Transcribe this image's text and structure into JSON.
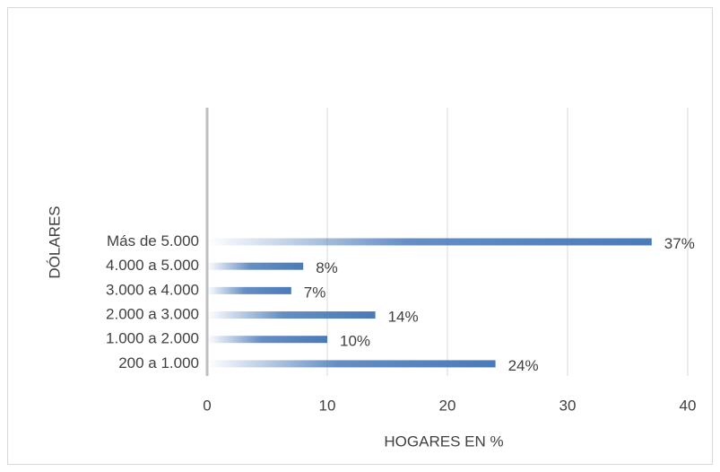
{
  "chart_data": {
    "type": "bar",
    "orientation": "horizontal",
    "categories": [
      "Más de 5.000",
      "4.000 a 5.000",
      "3.000 a 4.000",
      "2.000 a 3.000",
      "1.000 a 2.000",
      "200 a 1.000"
    ],
    "values": [
      37,
      8,
      7,
      14,
      10,
      24
    ],
    "value_labels": [
      "37%",
      "8%",
      "7%",
      "14%",
      "10%",
      "24%"
    ],
    "color": "#4a7ab8",
    "xlim": [
      0,
      40
    ],
    "xticks": [
      0,
      10,
      20,
      30,
      40
    ],
    "grid": true,
    "x_label": "HOGARES EN %",
    "y_label": "DÓLARES"
  }
}
